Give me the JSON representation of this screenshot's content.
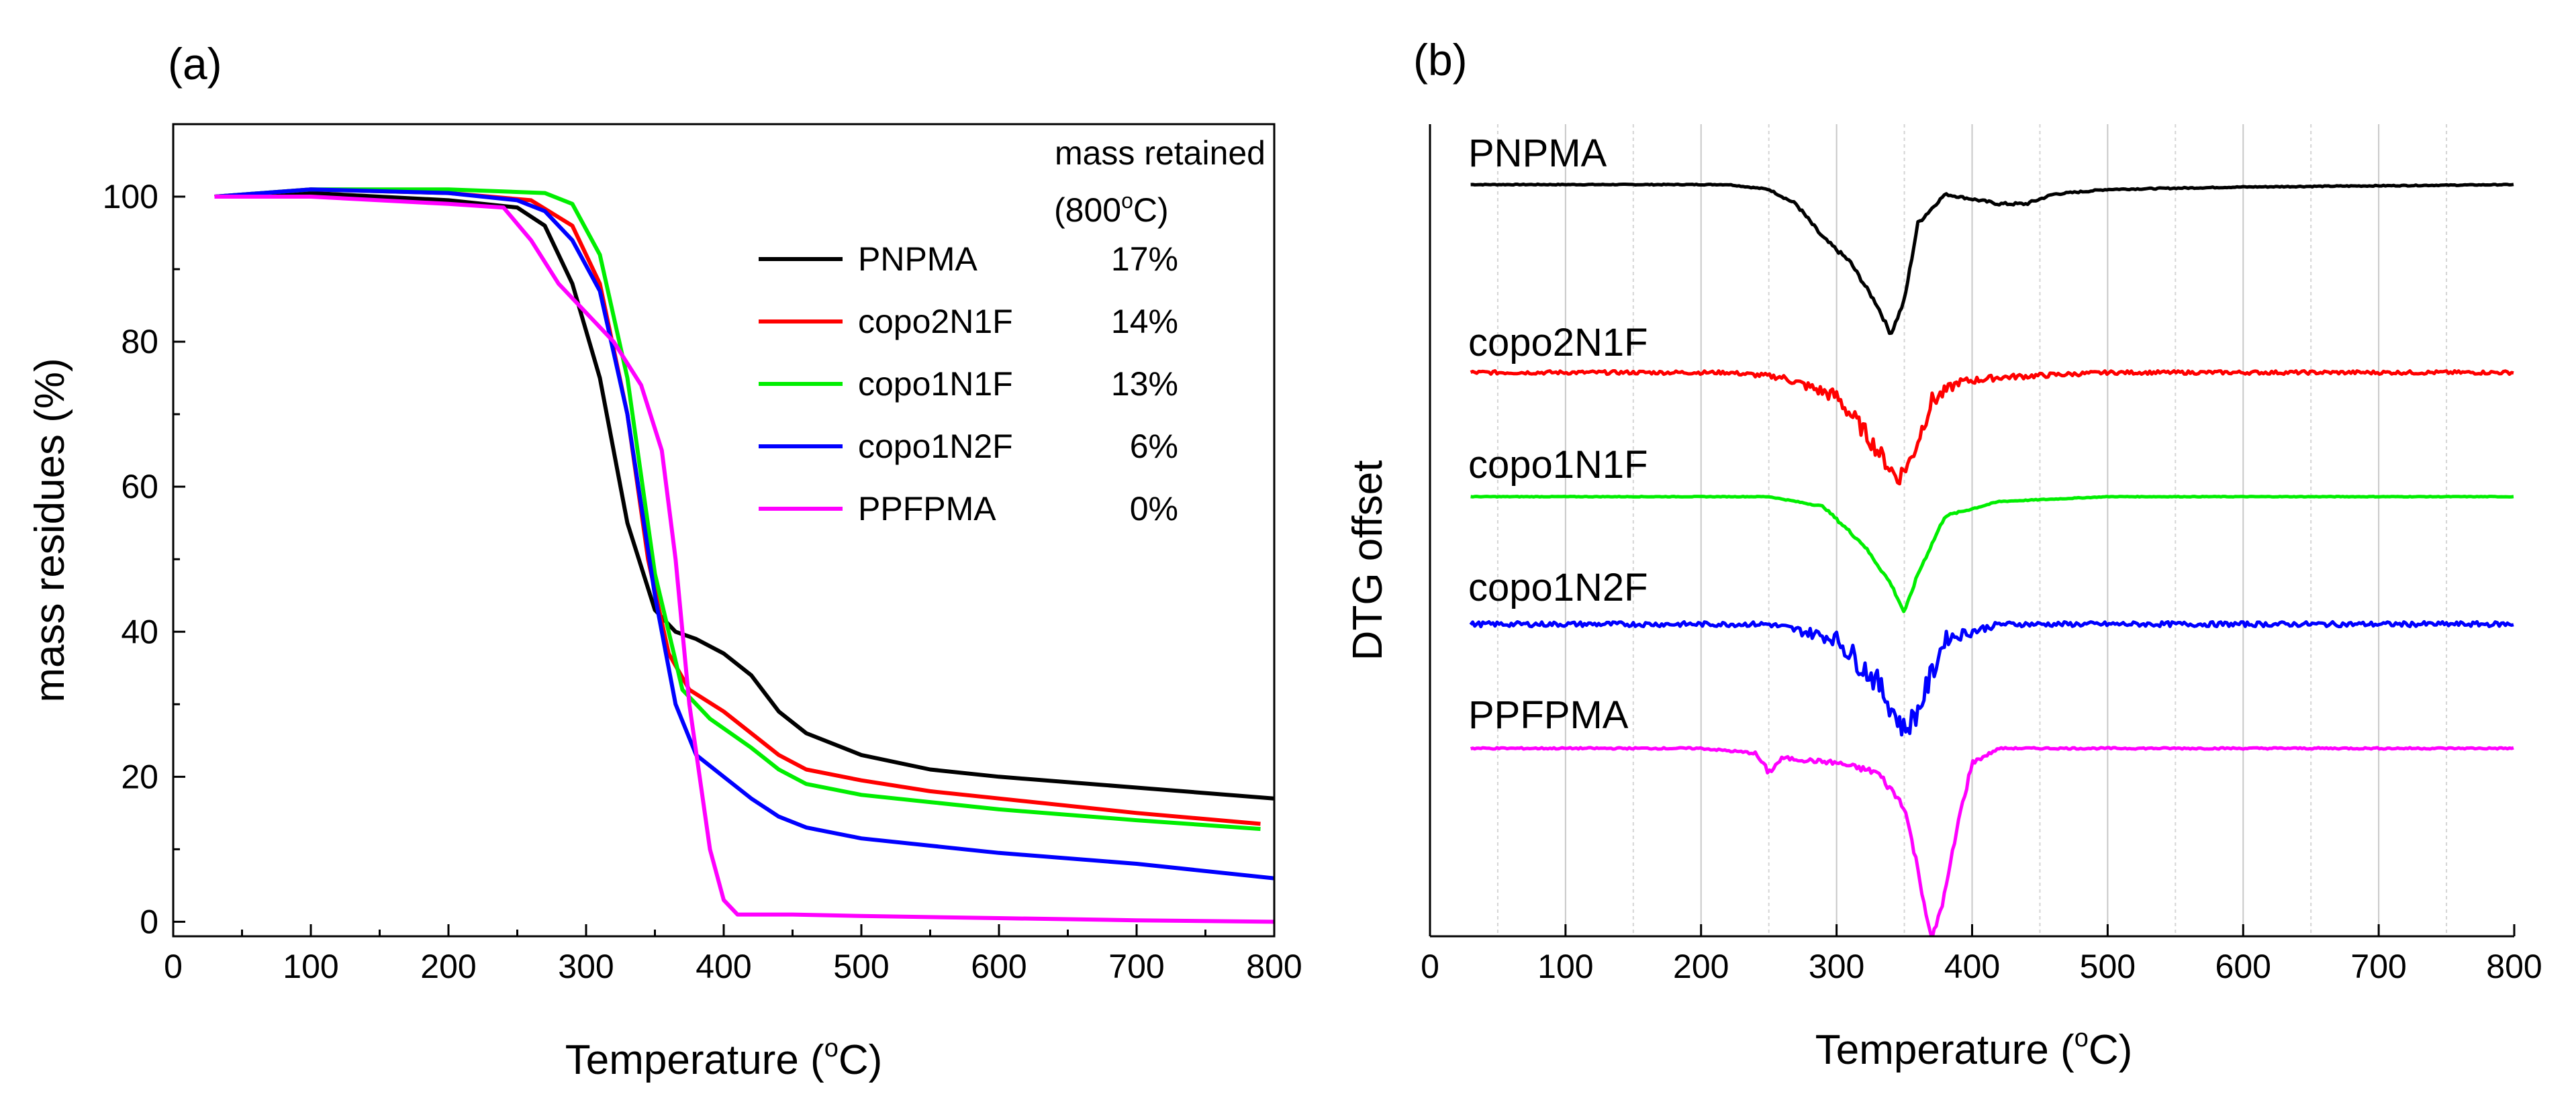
{
  "chart_data": [
    {
      "panel_label": "(a)",
      "type": "line",
      "title": "",
      "xlabel": "Temperature (",
      "xlabel_sup": "o",
      "xlabel_unit": "C)",
      "ylabel": "mass residues (%)",
      "xlim": [
        0,
        800
      ],
      "ylim": [
        -2,
        110
      ],
      "x_ticks": [
        0,
        100,
        200,
        300,
        400,
        500,
        600,
        700,
        800
      ],
      "y_ticks": [
        0,
        20,
        40,
        60,
        80,
        100
      ],
      "legend": {
        "title_line1": "mass retained",
        "title_line2_pre": "(800",
        "title_line2_sup": "o",
        "title_line2_post": "C)",
        "placement": "top-right"
      },
      "series": [
        {
          "name": "PNPMA",
          "retained": "17%",
          "color": "#000000",
          "x": [
            30,
            100,
            200,
            250,
            270,
            290,
            310,
            330,
            350,
            365,
            380,
            400,
            420,
            440,
            460,
            500,
            550,
            600,
            700,
            800
          ],
          "y": [
            100,
            100.5,
            99.5,
            98.5,
            96,
            88,
            75,
            55,
            43,
            40,
            39,
            37,
            34,
            29,
            26,
            23,
            21,
            20,
            18.5,
            17
          ]
        },
        {
          "name": "copo2N1F",
          "retained": "14%",
          "color": "#ff0000",
          "x": [
            30,
            100,
            200,
            260,
            290,
            310,
            330,
            345,
            360,
            375,
            400,
            420,
            440,
            460,
            500,
            550,
            600,
            700,
            790
          ],
          "y": [
            100,
            101,
            100.5,
            99.5,
            96,
            88,
            70,
            50,
            37,
            32,
            29,
            26,
            23,
            21,
            19.5,
            18,
            17,
            15,
            13.5
          ]
        },
        {
          "name": "copo1N1F",
          "retained": "13%",
          "color": "#00ee00",
          "x": [
            30,
            100,
            200,
            270,
            290,
            310,
            330,
            350,
            370,
            390,
            420,
            440,
            460,
            500,
            550,
            600,
            700,
            790
          ],
          "y": [
            100,
            101,
            101,
            100.5,
            99,
            92,
            75,
            48,
            32,
            28,
            24,
            21,
            19,
            17.5,
            16.5,
            15.5,
            14,
            12.8
          ]
        },
        {
          "name": "copo1N2F",
          "retained": "6%",
          "color": "#0000ff",
          "x": [
            30,
            100,
            200,
            250,
            270,
            290,
            310,
            330,
            350,
            365,
            380,
            400,
            420,
            440,
            460,
            500,
            550,
            600,
            700,
            800
          ],
          "y": [
            100,
            101,
            100.5,
            99.5,
            98,
            94,
            87,
            70,
            45,
            30,
            23,
            20,
            17,
            14.5,
            13,
            11.5,
            10.5,
            9.5,
            8,
            6
          ]
        },
        {
          "name": "PPFPMA",
          "retained": "0%",
          "color": "#ff00ff",
          "x": [
            30,
            100,
            200,
            240,
            260,
            280,
            300,
            320,
            340,
            355,
            365,
            375,
            390,
            400,
            410,
            450,
            500,
            600,
            700,
            800
          ],
          "y": [
            100,
            100,
            99,
            98.5,
            94,
            88,
            84,
            80,
            74,
            65,
            50,
            30,
            10,
            3,
            1,
            1,
            0.8,
            0.5,
            0.2,
            0
          ]
        }
      ]
    },
    {
      "panel_label": "(b)",
      "type": "line",
      "title": "",
      "xlabel": "Temperature (",
      "xlabel_sup": "o",
      "xlabel_unit": "C)",
      "ylabel": "DTG offset",
      "xlim": [
        0,
        800
      ],
      "x_ticks": [
        0,
        100,
        200,
        300,
        400,
        500,
        600,
        700,
        800
      ],
      "grid": true,
      "series": [
        {
          "name": "PNPMA",
          "color": "#000000",
          "noise": 0.4,
          "x": [
            30,
            220,
            250,
            270,
            290,
            310,
            330,
            340,
            350,
            360,
            380,
            420,
            440,
            460,
            500,
            600,
            800
          ],
          "y": [
            0,
            0,
            -1,
            -4,
            -11,
            -16,
            -25,
            -31,
            -24,
            -8,
            -2,
            -4,
            -4,
            -2,
            -1,
            -0.5,
            0
          ]
        },
        {
          "name": "copo2N1F",
          "color": "#ff0000",
          "noise": 1.8,
          "x": [
            30,
            220,
            260,
            300,
            320,
            340,
            345,
            355,
            370,
            390,
            420,
            500,
            800
          ],
          "y": [
            0,
            0,
            -1,
            -5,
            -12,
            -20,
            -22,
            -18,
            -6,
            -2,
            -1,
            0,
            0
          ]
        },
        {
          "name": "copo1N1F",
          "color": "#00ee00",
          "noise": 0.3,
          "x": [
            30,
            250,
            290,
            320,
            340,
            350,
            360,
            380,
            420,
            500,
            800
          ],
          "y": [
            0,
            0,
            -2,
            -10,
            -18,
            -24,
            -16,
            -4,
            -1,
            0,
            0
          ]
        },
        {
          "name": "copo1N2F",
          "color": "#0000ff",
          "noise": 2.5,
          "x": [
            30,
            250,
            300,
            330,
            350,
            360,
            380,
            420,
            500,
            800
          ],
          "y": [
            0,
            0,
            -3,
            -12,
            -22,
            -18,
            -3,
            0,
            0,
            0
          ]
        },
        {
          "name": "PPFPMA",
          "color": "#ff00ff",
          "noise": 0.8,
          "x": [
            30,
            200,
            240,
            250,
            260,
            300,
            330,
            350,
            360,
            370,
            380,
            390,
            400,
            420,
            800
          ],
          "y": [
            0,
            0,
            -1,
            -5,
            -2,
            -3,
            -5,
            -12,
            -25,
            -40,
            -30,
            -15,
            -3,
            0,
            0
          ]
        }
      ]
    }
  ]
}
